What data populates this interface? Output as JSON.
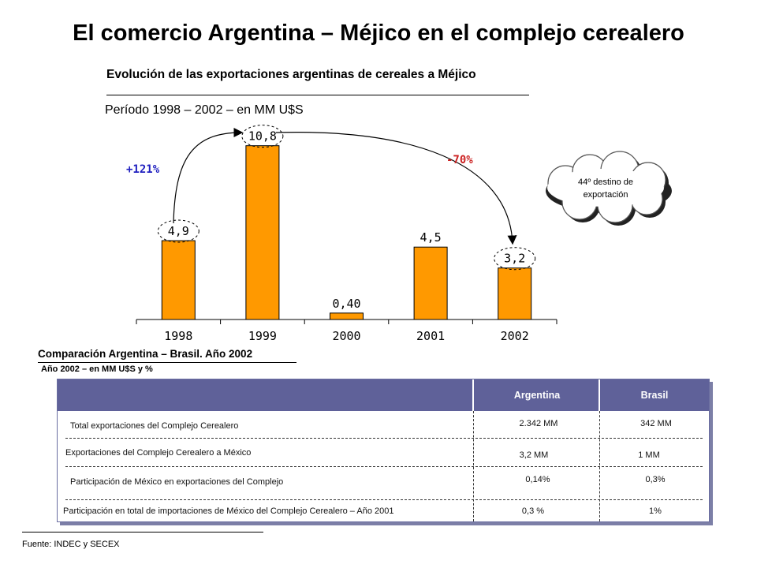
{
  "main_title": "El comercio Argentina – Méjico en el complejo cerealero",
  "chart_title": "Evolución de las  exportaciones argentinas de cereales a Méjico",
  "chart_subtitle": "Período 1998 – 2002 – en MM U$S",
  "chart_data": {
    "type": "bar",
    "title": "Evolución de las  exportaciones argentinas de cereales a Méjico",
    "subtitle": "Período 1998 – 2002 – en MM U$S",
    "categories": [
      "1998",
      "1999",
      "2000",
      "2001",
      "2002"
    ],
    "values": [
      4.9,
      10.8,
      0.4,
      4.5,
      3.2
    ],
    "value_labels": [
      "4,9",
      "10,8",
      "0,40",
      "4,5",
      "3,2"
    ],
    "ylim": [
      0,
      12.5
    ],
    "grid": false,
    "bar_color": "#ff9900",
    "annotations": [
      {
        "text": "+121%",
        "from": "1998",
        "to": "1999",
        "color": "#1f1fbf"
      },
      {
        "text": "-70%",
        "from": "1999",
        "to": "2002",
        "color": "#cc2222"
      }
    ],
    "callout": "44º destino de exportación"
  },
  "comparison": {
    "title": "Comparación Argentina – Brasil. Año 2002",
    "subtitle": "Año 2002 – en MM U$S y %",
    "headers": {
      "argentina": "Argentina",
      "brasil": "Brasil"
    },
    "rows": [
      {
        "label": "Total exportaciones del Complejo Cerealero",
        "argentina": "2.342 MM",
        "brasil": "342 MM"
      },
      {
        "label": "Exportaciones del Complejo Cerealero a México",
        "argentina": "3,2 MM",
        "brasil": "1 MM"
      },
      {
        "label": "Participación de México en exportaciones del Complejo",
        "argentina": "0,14%",
        "brasil": "0,3%"
      },
      {
        "label": "Participación en total de importaciones de México del Complejo Cerealero  – Año 2001",
        "argentina": "0,3 %",
        "brasil": "1%"
      }
    ],
    "colors": {
      "header": "#5f6199",
      "shadow": "#7c7fa7"
    }
  },
  "source": "Fuente: INDEC y SECEX"
}
